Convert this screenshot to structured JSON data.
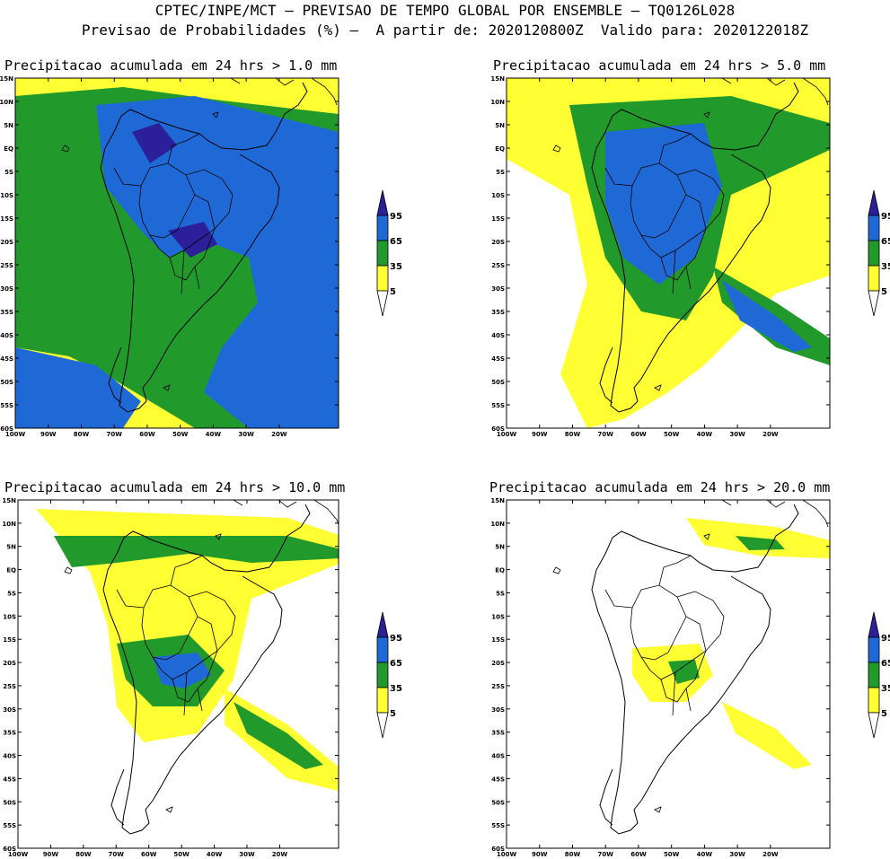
{
  "header": {
    "line1": "CPTEC/INPE/MCT – PREVISAO DE TEMPO GLOBAL POR ENSEMBLE – TQ0126L028",
    "line2": "Previsao de Probabilidades (%) –  A partir de: 2020120800Z  Valido para: 2020122018Z"
  },
  "colors": {
    "p5": "#ffff33",
    "p35": "#22992b",
    "p65": "#1f69d6",
    "p95": "#2c1f9a",
    "land_border": "#000000",
    "background": "#ffffff"
  },
  "axes": {
    "lat_labels": [
      "15N",
      "10N",
      "5N",
      "EQ",
      "5S",
      "10S",
      "15S",
      "20S",
      "25S",
      "30S",
      "35S",
      "40S",
      "45S",
      "50S",
      "55S",
      "60S"
    ],
    "lon_labels": [
      "100W",
      "90W",
      "80W",
      "70W",
      "60W",
      "50W",
      "40W",
      "30W",
      "20W"
    ]
  },
  "legend": {
    "labels": [
      "95",
      "65",
      "35",
      "5"
    ]
  },
  "panels": [
    {
      "title": "Precipitacao acumulada em 24 hrs > 1.0 mm"
    },
    {
      "title": "Precipitacao acumulada em 24 hrs > 5.0 mm"
    },
    {
      "title": "Precipitacao acumulada em 24 hrs > 10.0 mm"
    },
    {
      "title": "Precipitacao acumulada em 24 hrs > 20.0 mm"
    }
  ]
}
